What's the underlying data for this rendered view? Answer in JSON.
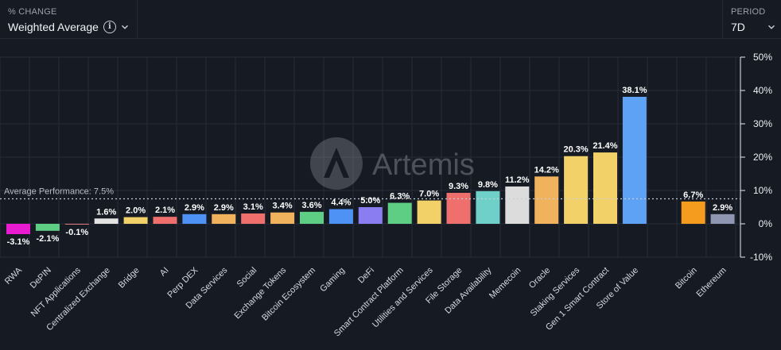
{
  "controls": {
    "metric_title": "% CHANGE",
    "metric_value": "Weighted Average",
    "info_icon_glyph": "i",
    "period_title": "PERIOD",
    "period_value": "7D"
  },
  "watermark": {
    "text": "Artemis",
    "icon": "artemis-logo-icon"
  },
  "colors": {
    "background": "#151a23",
    "grid": "#262c38",
    "average_line": "#c8cdd6"
  },
  "chart_data": {
    "type": "bar",
    "ylim": [
      -10,
      50
    ],
    "yticks": [
      -10,
      0,
      10,
      20,
      30,
      40,
      50
    ],
    "ytick_labels": [
      "-10%",
      "0%",
      "10%",
      "20%",
      "30%",
      "40%",
      "50%"
    ],
    "grid": true,
    "average": {
      "value": 7.5,
      "label": "Average Performance: 7.5%"
    },
    "bars": [
      {
        "category": "RWA",
        "value": -3.1,
        "label": "-3.1%",
        "color": "#e81bd0",
        "slot": 0
      },
      {
        "category": "DePIN",
        "value": -2.1,
        "label": "-2.1%",
        "color": "#5fce85",
        "slot": 1
      },
      {
        "category": "NFT Applications",
        "value": -0.1,
        "label": "-0.1%",
        "color": "#e07a7a",
        "slot": 2
      },
      {
        "category": "Centralized Exchange",
        "value": 1.6,
        "label": "1.6%",
        "color": "#e2e2e2",
        "slot": 3
      },
      {
        "category": "Bridge",
        "value": 2.0,
        "label": "2.0%",
        "color": "#f1d168",
        "slot": 4
      },
      {
        "category": "AI",
        "value": 2.1,
        "label": "2.1%",
        "color": "#ef6f6c",
        "slot": 5
      },
      {
        "category": "Perp DEX",
        "value": 2.9,
        "label": "2.9%",
        "color": "#4f92f5",
        "slot": 6
      },
      {
        "category": "Data Services",
        "value": 2.9,
        "label": "2.9%",
        "color": "#f0b25c",
        "slot": 7
      },
      {
        "category": "Social",
        "value": 3.1,
        "label": "3.1%",
        "color": "#ef6f6c",
        "slot": 8
      },
      {
        "category": "Exchange Tokens",
        "value": 3.4,
        "label": "3.4%",
        "color": "#f0b25c",
        "slot": 9
      },
      {
        "category": "Bitcoin Ecosystem",
        "value": 3.6,
        "label": "3.6%",
        "color": "#5fce85",
        "slot": 10
      },
      {
        "category": "Gaming",
        "value": 4.4,
        "label": "4.4%",
        "color": "#4f92f5",
        "slot": 11
      },
      {
        "category": "DeFi",
        "value": 5.0,
        "label": "5.0%",
        "color": "#8a7df2",
        "slot": 12
      },
      {
        "category": "Smart Contract Platform",
        "value": 6.3,
        "label": "6.3%",
        "color": "#5fce85",
        "slot": 13
      },
      {
        "category": "Utilities and Services",
        "value": 7.0,
        "label": "7.0%",
        "color": "#f1d168",
        "slot": 14
      },
      {
        "category": "File Storage",
        "value": 9.3,
        "label": "9.3%",
        "color": "#ef6f6c",
        "slot": 15
      },
      {
        "category": "Data Availability",
        "value": 9.8,
        "label": "9.8%",
        "color": "#6ed0c8",
        "slot": 16
      },
      {
        "category": "Memecoin",
        "value": 11.2,
        "label": "11.2%",
        "color": "#dcdcdc",
        "slot": 17
      },
      {
        "category": "Oracle",
        "value": 14.2,
        "label": "14.2%",
        "color": "#f0b25c",
        "slot": 18
      },
      {
        "category": "Staking Services",
        "value": 20.3,
        "label": "20.3%",
        "color": "#f1d168",
        "slot": 19
      },
      {
        "category": "Gen 1 Smart Contract",
        "value": 21.4,
        "label": "21.4%",
        "color": "#f1d168",
        "slot": 20
      },
      {
        "category": "Store of Value",
        "value": 38.1,
        "label": "38.1%",
        "color": "#5ea2f6",
        "slot": 21
      },
      {
        "category": "Bitcoin",
        "value": 6.7,
        "label": "6.7%",
        "color": "#f59b1e",
        "slot": 23
      },
      {
        "category": "Ethereum",
        "value": 2.9,
        "label": "2.9%",
        "color": "#8e96b2",
        "slot": 24
      }
    ]
  }
}
